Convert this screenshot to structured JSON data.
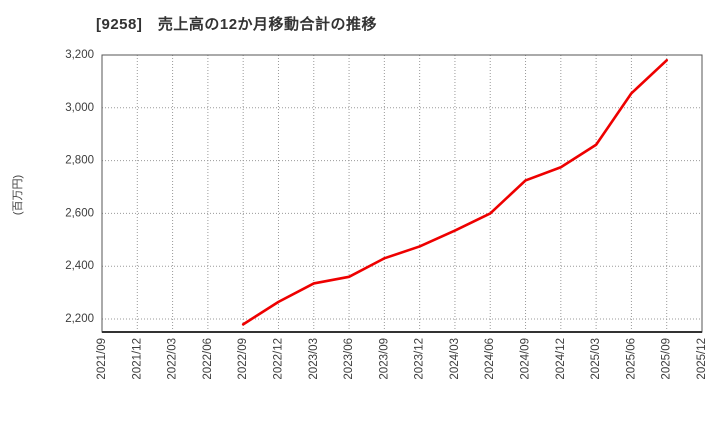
{
  "chart_data": {
    "type": "line",
    "title": "[9258]　売上高の12か月移動合計の推移",
    "ylabel": "(百万円)",
    "categories": [
      "2021/09",
      "2021/12",
      "2022/03",
      "2022/06",
      "2022/09",
      "2022/12",
      "2023/03",
      "2023/06",
      "2023/09",
      "2023/12",
      "2024/03",
      "2024/06",
      "2024/09",
      "2024/12",
      "2025/03",
      "2025/06",
      "2025/09",
      "2025/12"
    ],
    "series": [
      {
        "name": "売上高の12か月移動合計",
        "color": "#ee0000",
        "values": [
          null,
          null,
          null,
          null,
          2180,
          2265,
          2335,
          2360,
          2430,
          2475,
          2535,
          2600,
          2725,
          2775,
          2860,
          3055,
          3180,
          null
        ]
      }
    ],
    "yticks": [
      2200,
      2400,
      2600,
      2800,
      3000,
      3200
    ],
    "ylim": [
      2151,
      3200
    ],
    "grid": true,
    "legend_position": "none"
  },
  "style": {
    "line_color": "#ee0000",
    "grid_color": "#9a9a9a",
    "border_color": "#555555",
    "axis_color": "#333333",
    "title_color": "#333333",
    "tick_label_color": "#3d3d3d",
    "background": "#ffffff"
  }
}
